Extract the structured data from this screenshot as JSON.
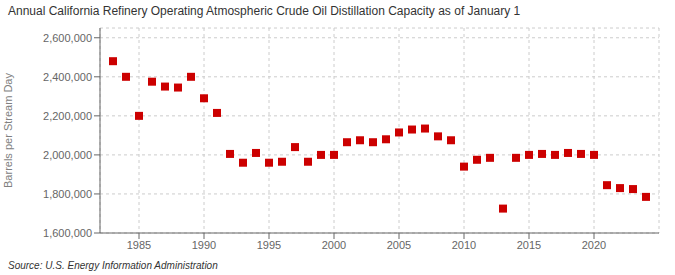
{
  "chart_data": {
    "type": "scatter",
    "title": "Annual California Refinery Operating Atmospheric Crude Oil Distillation Capacity as of January 1",
    "ylabel": "Barrels per Stream Day",
    "annotation": "Source: U.S. Energy Information Administration",
    "x": [
      1983,
      1984,
      1985,
      1986,
      1987,
      1988,
      1989,
      1990,
      1991,
      1992,
      1993,
      1994,
      1995,
      1996,
      1997,
      1998,
      1999,
      2000,
      2001,
      2002,
      2003,
      2004,
      2005,
      2006,
      2007,
      2008,
      2009,
      2010,
      2011,
      2012,
      2013,
      2014,
      2015,
      2016,
      2017,
      2018,
      2019,
      2020,
      2021,
      2022,
      2023,
      2024
    ],
    "values": [
      2480000,
      2400000,
      2200000,
      2375000,
      2350000,
      2345000,
      2400000,
      2290000,
      2215000,
      2005000,
      1960000,
      2010000,
      1960000,
      1965000,
      2040000,
      1965000,
      2000000,
      2000000,
      2065000,
      2075000,
      2065000,
      2080000,
      2115000,
      2130000,
      2135000,
      2095000,
      2075000,
      1940000,
      1975000,
      1985000,
      1725000,
      1985000,
      2000000,
      2005000,
      2000000,
      2010000,
      2005000,
      2000000,
      1845000,
      1830000,
      1825000,
      1785000
    ],
    "color": "#cc0000",
    "marker": "square",
    "xlim": [
      1982,
      2025
    ],
    "xticks": [
      1985,
      1990,
      1995,
      2000,
      2005,
      2010,
      2015,
      2020
    ],
    "ylim": [
      1600000,
      2650000
    ],
    "yticks": [
      {
        "value": 1600000,
        "label": "1,600,000"
      },
      {
        "value": 1800000,
        "label": "1,800,000"
      },
      {
        "value": 2000000,
        "label": "2,000,000"
      },
      {
        "value": 2200000,
        "label": "2,200,000"
      },
      {
        "value": 2400000,
        "label": "2,400,000"
      },
      {
        "value": 2600000,
        "label": "2,600,000"
      }
    ],
    "grid": true
  }
}
